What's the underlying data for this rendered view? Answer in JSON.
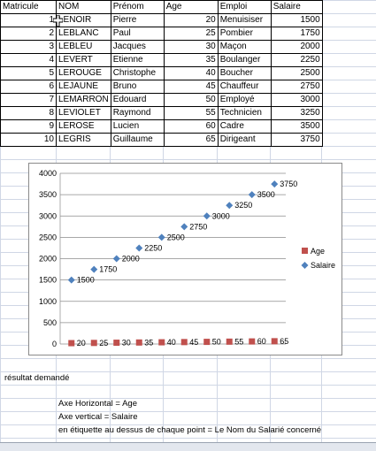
{
  "headers": [
    "Matricule",
    "NOM",
    "Prénom",
    "Age",
    "Emploi",
    "Salaire"
  ],
  "rows": [
    {
      "matricule": "1",
      "nom": "LENOIR",
      "prenom": "Pierre",
      "age": "20",
      "emploi": "Menuisiser",
      "salaire": "1500"
    },
    {
      "matricule": "2",
      "nom": "LEBLANC",
      "prenom": "Paul",
      "age": "25",
      "emploi": "Pombier",
      "salaire": "1750"
    },
    {
      "matricule": "3",
      "nom": "LEBLEU",
      "prenom": "Jacques",
      "age": "30",
      "emploi": "Maçon",
      "salaire": "2000"
    },
    {
      "matricule": "4",
      "nom": "LEVERT",
      "prenom": "Etienne",
      "age": "35",
      "emploi": "Boulanger",
      "salaire": "2250"
    },
    {
      "matricule": "5",
      "nom": "LEROUGE",
      "prenom": "Christophe",
      "age": "40",
      "emploi": "Boucher",
      "salaire": "2500"
    },
    {
      "matricule": "6",
      "nom": "LEJAUNE",
      "prenom": "Bruno",
      "age": "45",
      "emploi": "Chauffeur",
      "salaire": "2750"
    },
    {
      "matricule": "7",
      "nom": "LEMARRON",
      "prenom": "Edouard",
      "age": "50",
      "emploi": "Employé",
      "salaire": "3000"
    },
    {
      "matricule": "8",
      "nom": "LEVIOLET",
      "prenom": "Raymond",
      "age": "55",
      "emploi": "Technicien",
      "salaire": "3250"
    },
    {
      "matricule": "9",
      "nom": "LEROSE",
      "prenom": "Lucien",
      "age": "60",
      "emploi": "Cadre",
      "salaire": "3500"
    },
    {
      "matricule": "10",
      "nom": "LEGRIS",
      "prenom": "Guillaume",
      "age": "65",
      "emploi": "Dirigeant",
      "salaire": "3750"
    }
  ],
  "chart_data": {
    "type": "line",
    "categories": [
      "1",
      "2",
      "3",
      "4",
      "5",
      "6",
      "7",
      "8",
      "9",
      "10"
    ],
    "series": [
      {
        "name": "Age",
        "values": [
          20,
          25,
          30,
          35,
          40,
          45,
          50,
          55,
          60,
          65
        ],
        "color": "#c0504d",
        "marker": "square"
      },
      {
        "name": "Salaire",
        "values": [
          1500,
          1750,
          2000,
          2250,
          2500,
          2750,
          3000,
          3250,
          3500,
          3750
        ],
        "color": "#4f81bd",
        "marker": "diamond"
      }
    ],
    "ylim": [
      0,
      4000
    ],
    "yticks": [
      0,
      500,
      1000,
      1500,
      2000,
      2500,
      3000,
      3500,
      4000
    ],
    "grid": true,
    "show_lines": false,
    "data_labels": true,
    "legend": "right",
    "title": "",
    "xlabel": "",
    "ylabel": ""
  },
  "notes": {
    "result": "résultat demandé",
    "axe_h": "Axe Horizontal = Age",
    "axe_v": "Axe vertical = Salaire",
    "etiquette": "en étiquette au dessus de chaque point = Le Nom du Salarié concerné"
  },
  "colors": {
    "gridline": "#d0d7e5",
    "age": "#c0504d",
    "salaire": "#4f81bd"
  },
  "icons": {
    "cell_cursor": "cross-cursor-icon"
  }
}
